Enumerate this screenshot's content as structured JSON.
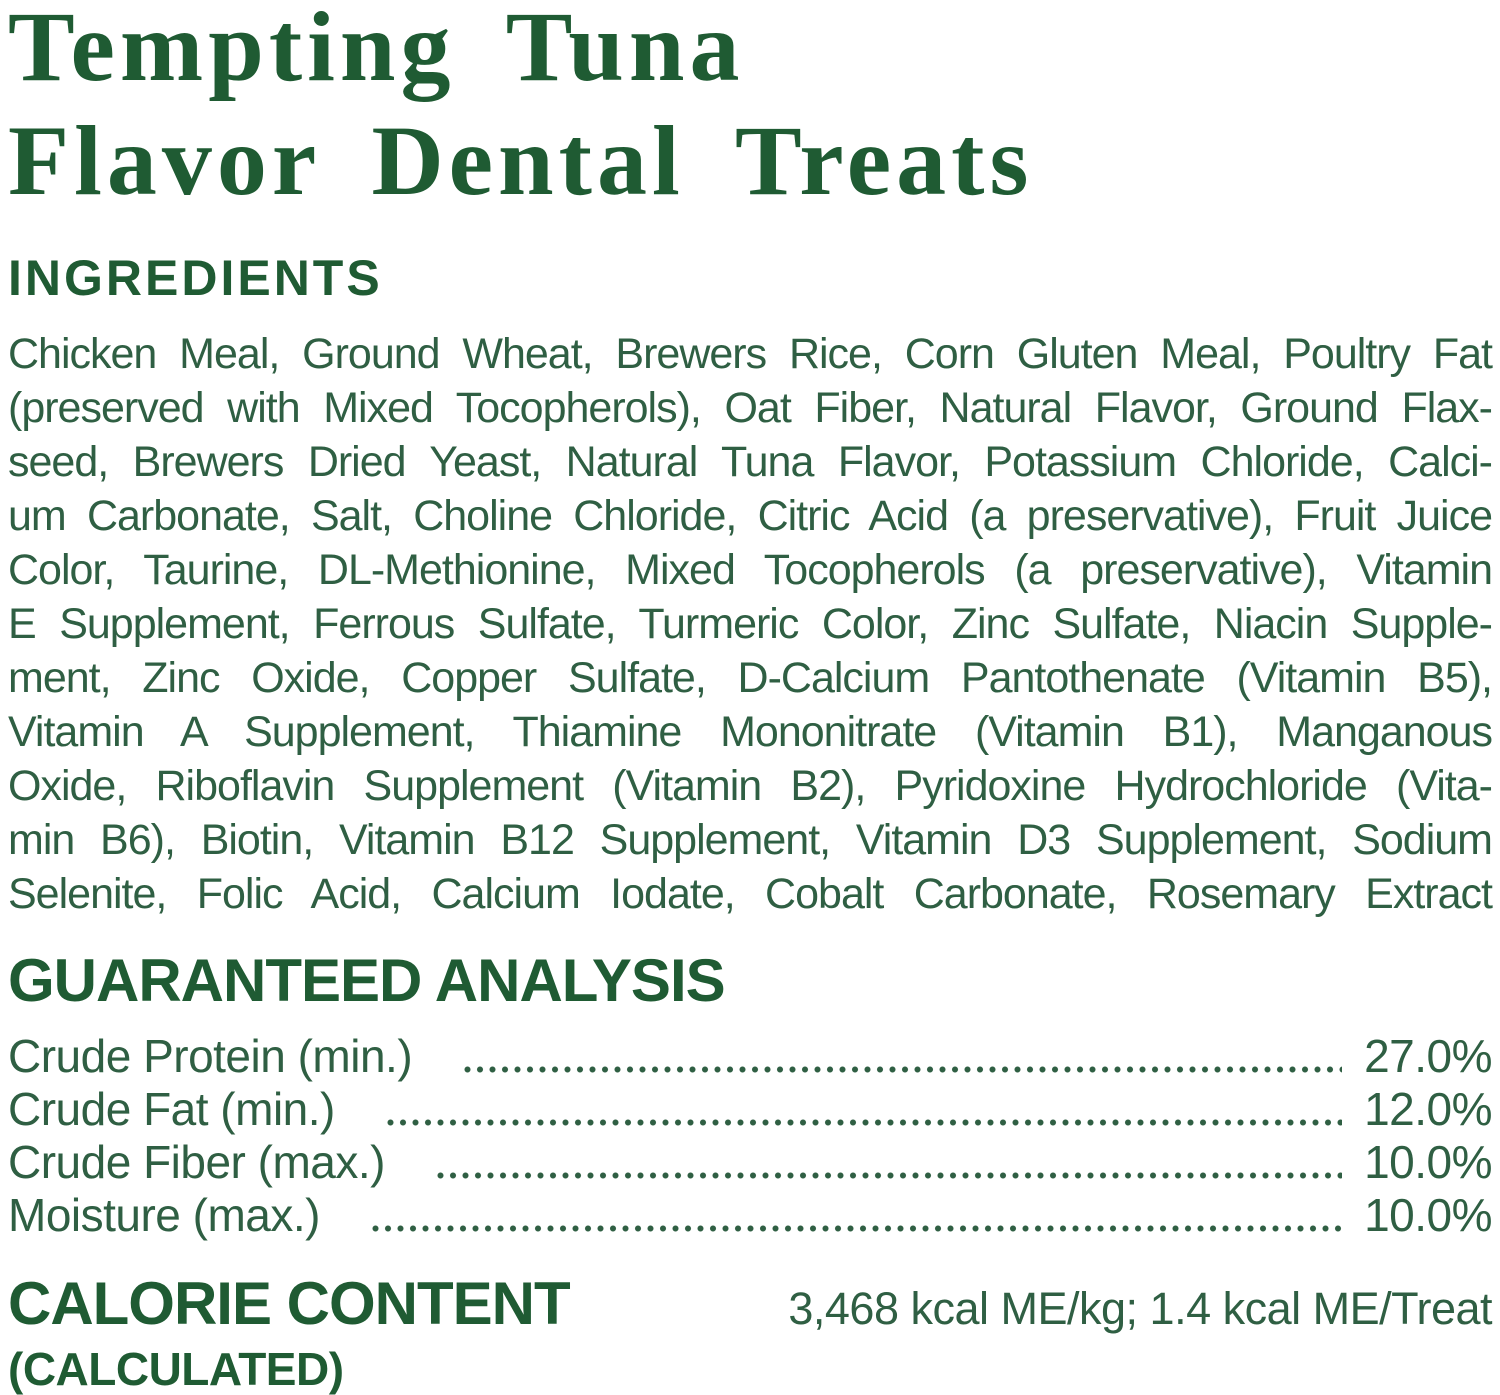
{
  "page": {
    "background_color": "#ffffff",
    "heading_color": "#1f5b33",
    "text_color": "#2f5f43"
  },
  "title": {
    "line1": "Tempting Tuna",
    "line2": "Flavor Dental Treats"
  },
  "ingredients": {
    "heading": "INGREDIENTS",
    "lines": [
      "Chicken Meal, Ground Wheat, Brewers Rice, Corn Gluten Meal, Poultry Fat",
      "(preserved with Mixed Tocopherols), Oat Fiber, Natural Flavor, Ground Flax-",
      "seed, Brewers Dried Yeast, Natural Tuna Flavor, Potassium Chloride, Calci-",
      "um Carbonate, Salt, Choline Chloride, Citric Acid (a preservative), Fruit Juice",
      "Color, Taurine, DL-Methionine, Mixed Tocopherols (a preservative), Vitamin",
      "E Supplement, Ferrous Sulfate, Turmeric Color, Zinc Sulfate, Niacin Supple-",
      "ment, Zinc Oxide, Copper Sulfate, D-Calcium Pantothenate (Vitamin B5),",
      "Vitamin A Supplement, Thiamine Mononitrate (Vitamin B1), Manganous",
      "Oxide, Riboflavin Supplement (Vitamin B2), Pyridoxine Hydrochloride (Vita-",
      "min B6), Biotin, Vitamin B12 Supplement, Vitamin D3 Supplement, Sodium",
      "Selenite, Folic Acid, Calcium Iodate, Cobalt Carbonate, Rosemary Extract"
    ]
  },
  "guaranteed_analysis": {
    "heading": "GUARANTEED ANALYSIS",
    "rows": [
      {
        "label": "Crude Protein (min.)",
        "value": "27.0%"
      },
      {
        "label": "Crude Fat (min.)",
        "value": "12.0%"
      },
      {
        "label": "Crude Fiber (max.)",
        "value": "10.0%"
      },
      {
        "label": "Moisture (max.)",
        "value": "10.0%"
      }
    ]
  },
  "calorie_content": {
    "heading_line1": "CALORIE CONTENT",
    "heading_line2": "(CALCULATED)",
    "value": "3,468 kcal ME/kg; 1.4 kcal ME/Treat"
  }
}
